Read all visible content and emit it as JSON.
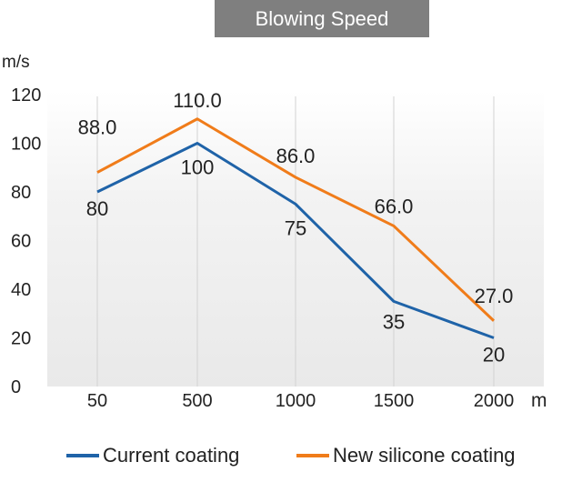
{
  "chart_data": {
    "type": "line",
    "title": "Blowing Speed",
    "xlabel": "m",
    "ylabel": "m/s",
    "categories": [
      "50",
      "500",
      "1000",
      "1500",
      "2000"
    ],
    "ylim": [
      0,
      120
    ],
    "yticks": [
      0,
      20,
      40,
      60,
      80,
      100,
      120
    ],
    "grid": "vertical",
    "legend_position": "bottom",
    "series": [
      {
        "name": "Current coating",
        "color": "#1f63a8",
        "values": [
          80,
          100,
          75,
          35,
          20
        ],
        "labels": [
          "80",
          "100",
          "75",
          "35",
          "20"
        ]
      },
      {
        "name": "New silicone coating",
        "color": "#f07c1a",
        "values": [
          88,
          110,
          86,
          66,
          27
        ],
        "labels": [
          "88.0",
          "110.0",
          "86.0",
          "66.0",
          "27.0"
        ]
      }
    ]
  }
}
